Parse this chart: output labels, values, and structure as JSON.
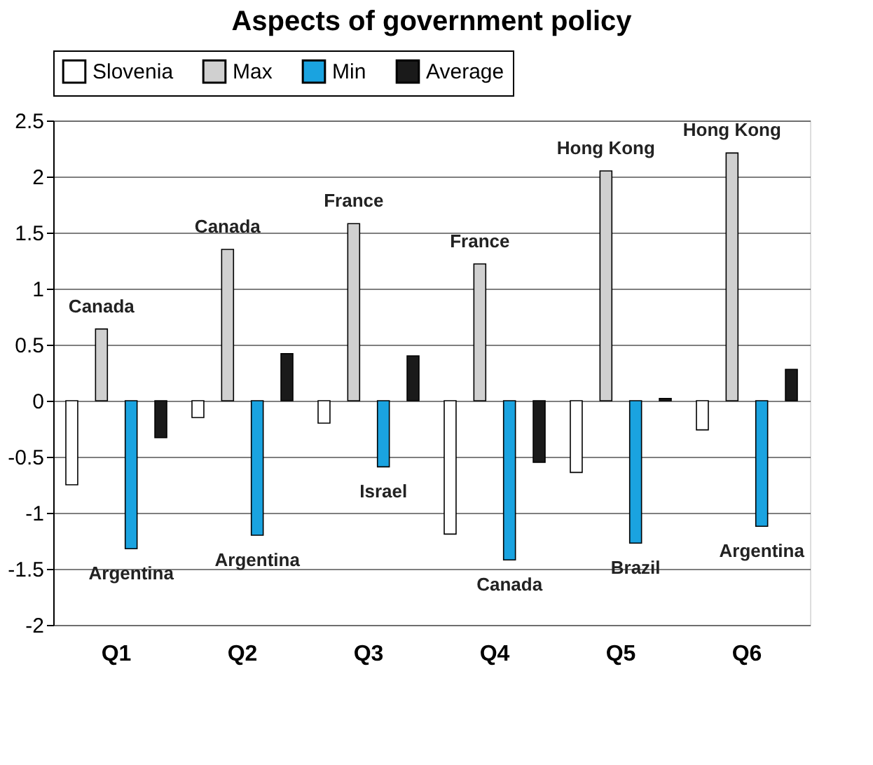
{
  "chart_data": {
    "type": "bar",
    "title": "Aspects of government policy",
    "categories": [
      "Q1",
      "Q2",
      "Q3",
      "Q4",
      "Q5",
      "Q6"
    ],
    "series": [
      {
        "name": "Slovenia",
        "color": "#ffffff",
        "values": [
          -0.75,
          -0.15,
          -0.2,
          -1.19,
          -0.64,
          -0.26
        ]
      },
      {
        "name": "Max",
        "color": "#d0d0d0",
        "values": [
          0.64,
          1.35,
          1.58,
          1.22,
          2.05,
          2.21
        ]
      },
      {
        "name": "Min",
        "color": "#1aa3e0",
        "values": [
          -1.32,
          -1.2,
          -0.59,
          -1.42,
          -1.27,
          -1.12
        ]
      },
      {
        "name": "Average",
        "color": "#1a1a1a",
        "values": [
          -0.33,
          0.42,
          0.4,
          -0.55,
          0.02,
          0.28
        ]
      }
    ],
    "annotations": [
      "Canada",
      "Argentina",
      "Canada",
      "Argentina",
      "France",
      "Israel",
      "France",
      "Canada",
      "Hong Kong",
      "Brazil",
      "Hong Kong",
      "Argentina"
    ],
    "ylim": [
      -2,
      2.5
    ],
    "yticks": [
      -2,
      -1.5,
      -1,
      -0.5,
      0,
      0.5,
      1,
      1.5,
      2,
      2.5
    ],
    "grid": "y",
    "legend": "top"
  }
}
